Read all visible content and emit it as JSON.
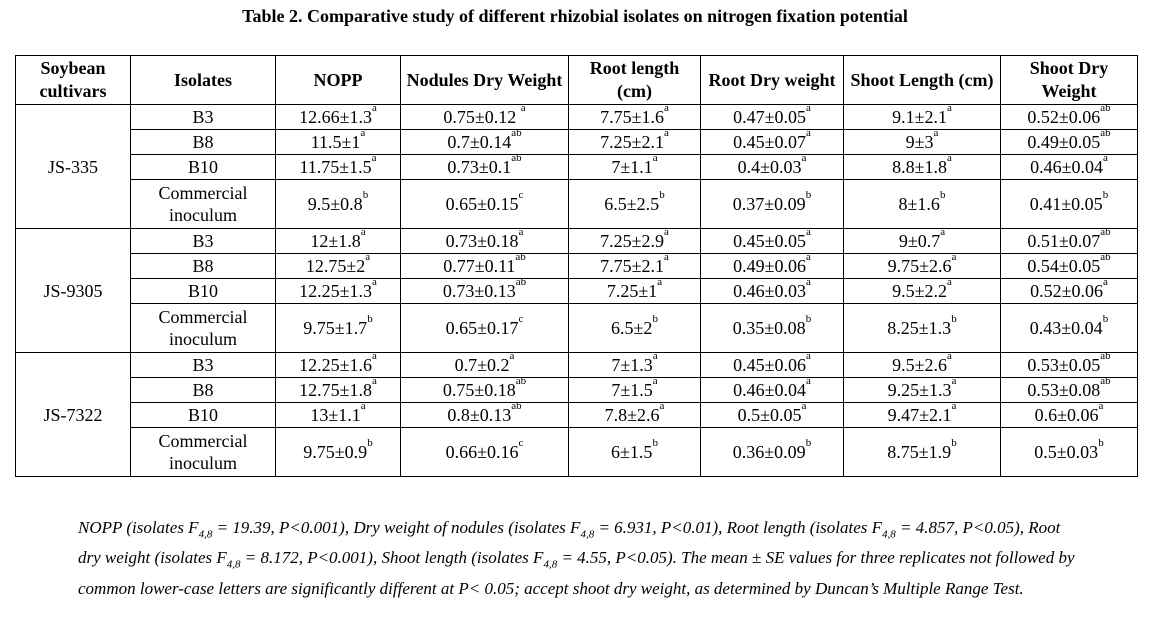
{
  "title": "Table 2. Comparative study of different rhizobial isolates on nitrogen fixation potential",
  "headers": [
    "Soybean cultivars",
    "Isolates",
    "NOPP",
    "Nodules Dry Weight",
    "Root length (cm)",
    "Root Dry weight",
    "Shoot Length (cm)",
    "Shoot Dry Weight"
  ],
  "groups": [
    {
      "cultivar": "JS-335",
      "rows": [
        {
          "isolate": "B3",
          "cells": [
            {
              "v": "12.66±1.3",
              "s": "a"
            },
            {
              "v": "0.75±0.12 ",
              "s": "a"
            },
            {
              "v": "7.75±1.6",
              "s": "a"
            },
            {
              "v": "0.47±0.05",
              "s": "a"
            },
            {
              "v": "9.1±2.1",
              "s": "a"
            },
            {
              "v": "0.52±0.06",
              "s": "ab"
            }
          ]
        },
        {
          "isolate": "B8",
          "cells": [
            {
              "v": "11.5±1",
              "s": "a"
            },
            {
              "v": "0.7±0.14",
              "s": "ab"
            },
            {
              "v": "7.25±2.1",
              "s": "a"
            },
            {
              "v": "0.45±0.07",
              "s": "a"
            },
            {
              "v": "9±3",
              "s": "a"
            },
            {
              "v": "0.49±0.05",
              "s": "ab"
            }
          ]
        },
        {
          "isolate": "B10",
          "cells": [
            {
              "v": "11.75±1.5",
              "s": "a"
            },
            {
              "v": "0.73±0.1",
              "s": "ab"
            },
            {
              "v": "7±1.1",
              "s": "a"
            },
            {
              "v": "0.4±0.03",
              "s": "a"
            },
            {
              "v": "8.8±1.8",
              "s": "a"
            },
            {
              "v": "0.46±0.04",
              "s": "a"
            }
          ]
        },
        {
          "isolate": "Commercial inoculum",
          "cells": [
            {
              "v": "9.5±0.8",
              "s": "b"
            },
            {
              "v": "0.65±0.15",
              "s": "c"
            },
            {
              "v": "6.5±2.5",
              "s": "b"
            },
            {
              "v": "0.37±0.09",
              "s": "b"
            },
            {
              "v": "8±1.6",
              "s": "b"
            },
            {
              "v": "0.41±0.05",
              "s": "b"
            }
          ]
        }
      ]
    },
    {
      "cultivar": "JS-9305",
      "rows": [
        {
          "isolate": "B3",
          "cells": [
            {
              "v": "12±1.8",
              "s": "a"
            },
            {
              "v": "0.73±0.18",
              "s": "a"
            },
            {
              "v": "7.25±2.9",
              "s": "a"
            },
            {
              "v": "0.45±0.05",
              "s": "a"
            },
            {
              "v": "9±0.7",
              "s": "a"
            },
            {
              "v": "0.51±0.07",
              "s": "ab"
            }
          ]
        },
        {
          "isolate": "B8",
          "cells": [
            {
              "v": "12.75±2",
              "s": "a"
            },
            {
              "v": "0.77±0.11",
              "s": "ab"
            },
            {
              "v": "7.75±2.1",
              "s": "a"
            },
            {
              "v": "0.49±0.06",
              "s": "a"
            },
            {
              "v": "9.75±2.6",
              "s": "a"
            },
            {
              "v": "0.54±0.05",
              "s": "ab"
            }
          ]
        },
        {
          "isolate": "B10",
          "cells": [
            {
              "v": "12.25±1.3",
              "s": "a"
            },
            {
              "v": "0.73±0.13",
              "s": "ab"
            },
            {
              "v": "7.25±1",
              "s": "a"
            },
            {
              "v": "0.46±0.03",
              "s": "a"
            },
            {
              "v": "9.5±2.2",
              "s": "a"
            },
            {
              "v": "0.52±0.06",
              "s": "a"
            }
          ]
        },
        {
          "isolate": "Commercial inoculum",
          "cells": [
            {
              "v": "9.75±1.7",
              "s": "b"
            },
            {
              "v": "0.65±0.17",
              "s": "c"
            },
            {
              "v": "6.5±2",
              "s": "b"
            },
            {
              "v": "0.35±0.08",
              "s": "b"
            },
            {
              "v": "8.25±1.3",
              "s": "b"
            },
            {
              "v": "0.43±0.04",
              "s": "b"
            }
          ]
        }
      ]
    },
    {
      "cultivar": "JS-7322",
      "rows": [
        {
          "isolate": "B3",
          "cells": [
            {
              "v": "12.25±1.6",
              "s": "a"
            },
            {
              "v": "0.7±0.2",
              "s": "a"
            },
            {
              "v": "7±1.3",
              "s": "a"
            },
            {
              "v": "0.45±0.06",
              "s": "a"
            },
            {
              "v": "9.5±2.6",
              "s": "a"
            },
            {
              "v": "0.53±0.05",
              "s": "ab"
            }
          ]
        },
        {
          "isolate": "B8",
          "cells": [
            {
              "v": "12.75±1.8",
              "s": "a"
            },
            {
              "v": "0.75±0.18",
              "s": "ab"
            },
            {
              "v": "7±1.5",
              "s": "a"
            },
            {
              "v": "0.46±0.04",
              "s": "a"
            },
            {
              "v": "9.25±1.3",
              "s": "a"
            },
            {
              "v": "0.53±0.08",
              "s": "ab"
            }
          ]
        },
        {
          "isolate": "B10",
          "cells": [
            {
              "v": "13±1.1",
              "s": "a"
            },
            {
              "v": "0.8±0.13",
              "s": "ab"
            },
            {
              "v": "7.8±2.6",
              "s": "a"
            },
            {
              "v": "0.5±0.05",
              "s": "a"
            },
            {
              "v": "9.47±2.1",
              "s": "a"
            },
            {
              "v": "0.6±0.06",
              "s": "a"
            }
          ]
        },
        {
          "isolate": "Commercial inoculum",
          "cells": [
            {
              "v": "9.75±0.9",
              "s": "b"
            },
            {
              "v": "0.66±0.16",
              "s": "c"
            },
            {
              "v": "6±1.5",
              "s": "b"
            },
            {
              "v": "0.36±0.09",
              "s": "b"
            },
            {
              "v": "8.75±1.9",
              "s": "b"
            },
            {
              "v": "0.5±0.03",
              "s": "b"
            }
          ]
        }
      ]
    }
  ],
  "note": {
    "parts": [
      "NOPP (isolates F",
      "4,8",
      " = 19.39, P<0.001), Dry weight of nodules (isolates F",
      "4,8",
      " = 6.931, P<0.01), Root length (isolates F",
      "4,8",
      " = 4.857, P<0.05), Root dry weight (isolates F",
      "4,8",
      " = 8.172, P<0.001), Shoot length (isolates F",
      "4,8",
      " = 4.55, P<0.05). The mean ± SE values for three replicates not followed by common lower-case letters are significantly different at P< 0.05; accept shoot dry weight, as determined by Duncan’s Multiple Range Test."
    ]
  }
}
